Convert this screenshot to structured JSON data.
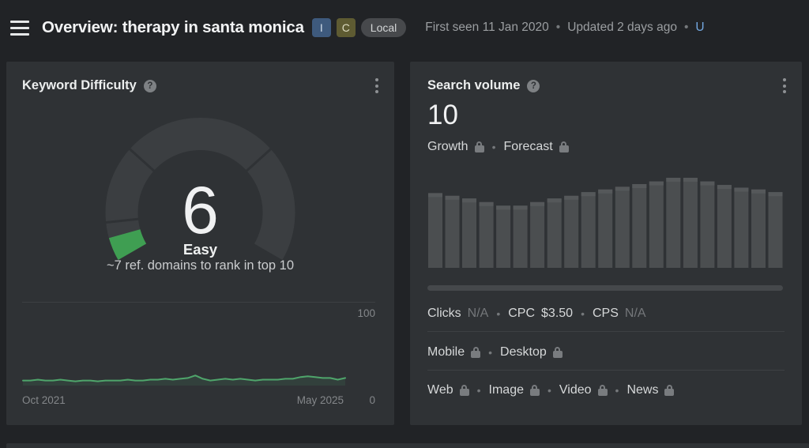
{
  "bullet": "•",
  "icons": {
    "help": "?",
    "menu": "hamburger",
    "kebab": "vertical-three-dots",
    "lock": "padlock"
  },
  "colors": {
    "page_bg": "#212326",
    "panel_bg": "#2f3235",
    "gauge_track": "#3b3e41",
    "kd_green": "#3f9e52",
    "spark_green": "#4fa56b",
    "spark_fill": "rgba(79,165,107,0.13)",
    "bar_gray": "#4b4e50",
    "bar_cap_gray": "#55585a",
    "scrollbar_gray": "#45484b",
    "divider": "#3d4043",
    "link_blue": "#74a9e2"
  },
  "header": {
    "title": "Overview: therapy in santa monica",
    "badges": [
      {
        "label": "I",
        "meaning": "informational-intent",
        "bg": "#3e5a7d"
      },
      {
        "label": "C",
        "meaning": "commercial-intent",
        "bg": "#5e5b32"
      },
      {
        "label": "Local",
        "meaning": "local-intent",
        "bg": "#47494c"
      }
    ],
    "meta": {
      "first_seen": "First seen 11 Jan 2020",
      "updated": "Updated 2 days ago",
      "update_link": "U"
    }
  },
  "kd_panel": {
    "title": "Keyword Difficulty",
    "value": "6",
    "label": "Easy",
    "subtitle": "~7 ref. domains to rank in top 10",
    "gauge": {
      "value": 6,
      "max": 100,
      "band_boundaries": [
        10,
        30,
        70
      ]
    },
    "chart_data": {
      "type": "line",
      "title": "Keyword Difficulty history",
      "x_start": "Oct 2021",
      "x_end": "May 2025",
      "axis_max_label": "100",
      "axis_min_label": "0",
      "ylim": [
        0,
        100
      ],
      "values": [
        6,
        6,
        7,
        6,
        6,
        7,
        6,
        5,
        6,
        6,
        5,
        6,
        6,
        6,
        7,
        6,
        6,
        7,
        7,
        8,
        7,
        8,
        9,
        12,
        8,
        6,
        7,
        8,
        7,
        8,
        7,
        6,
        7,
        7,
        7,
        8,
        8,
        10,
        11,
        10,
        9,
        9,
        7,
        9
      ]
    }
  },
  "sv_panel": {
    "title": "Search volume",
    "value": "10",
    "links_row": [
      {
        "label": "Growth",
        "locked": true,
        "name": "growth-link",
        "interactable": true
      },
      {
        "label": "Forecast",
        "locked": true,
        "name": "forecast-link",
        "interactable": true
      }
    ],
    "metrics_row": [
      {
        "label": "Clicks",
        "value": "N/A",
        "muted": true,
        "name": "clicks-metric",
        "interactable": false
      },
      {
        "label": "CPC",
        "value": "$3.50",
        "muted": false,
        "name": "cpc-metric",
        "interactable": false
      },
      {
        "label": "CPS",
        "value": "N/A",
        "muted": true,
        "name": "cps-metric",
        "interactable": false
      }
    ],
    "devices_row": [
      {
        "label": "Mobile",
        "locked": true,
        "name": "mobile-link",
        "interactable": true
      },
      {
        "label": "Desktop",
        "locked": true,
        "name": "desktop-link",
        "interactable": true
      }
    ],
    "platforms_row": [
      {
        "label": "Web",
        "locked": true,
        "name": "web-link",
        "interactable": true
      },
      {
        "label": "Image",
        "locked": true,
        "name": "image-link",
        "interactable": true
      },
      {
        "label": "Video",
        "locked": true,
        "name": "video-link",
        "interactable": true
      },
      {
        "label": "News",
        "locked": true,
        "name": "news-link",
        "interactable": true
      }
    ],
    "chart_data": {
      "type": "bar",
      "title": "Monthly search volume trend (relative, unlabeled axis)",
      "values_relative_pct": [
        83,
        80,
        77,
        73,
        69,
        69,
        73,
        77,
        80,
        84,
        87,
        90,
        93,
        96,
        100,
        100,
        96,
        92,
        89,
        87,
        84
      ]
    }
  }
}
